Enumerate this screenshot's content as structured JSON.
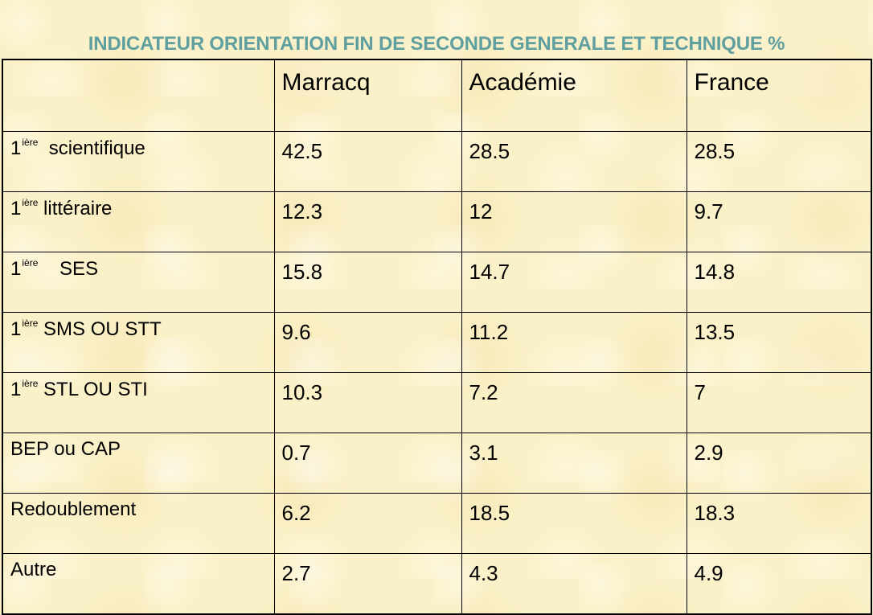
{
  "title": "INDICATEUR ORIENTATION FIN DE SECONDE GENERALE ET TECHNIQUE %",
  "table": {
    "columns": [
      "",
      "Marracq",
      "Académie",
      "France"
    ],
    "rows": [
      {
        "prefix": "1",
        "ordinal": "ière",
        "label": "  scientifique",
        "values": [
          "42.5",
          "28.5",
          "28.5"
        ]
      },
      {
        "prefix": "1",
        "ordinal": "ière",
        "label": " littéraire",
        "values": [
          "12.3",
          "12",
          "9.7"
        ]
      },
      {
        "prefix": "1",
        "ordinal": "ière",
        "label": "    SES",
        "values": [
          "15.8",
          "14.7",
          "14.8"
        ]
      },
      {
        "prefix": "1",
        "ordinal": "ière",
        "label": " SMS OU STT",
        "values": [
          "9.6",
          "11.2",
          "13.5"
        ]
      },
      {
        "prefix": "1",
        "ordinal": "ière",
        "label": " STL OU STI",
        "values": [
          "10.3",
          "7.2",
          "7"
        ]
      },
      {
        "prefix": "",
        "ordinal": "",
        "label": "BEP ou CAP",
        "values": [
          "0.7",
          "3.1",
          "2.9"
        ]
      },
      {
        "prefix": "",
        "ordinal": "",
        "label": "Redoublement",
        "values": [
          "6.2",
          "18.5",
          "18.3"
        ]
      },
      {
        "prefix": "",
        "ordinal": "",
        "label": "Autre",
        "values": [
          "2.7",
          "4.3",
          "4.9"
        ]
      }
    ]
  },
  "colors": {
    "title": "#5f9f9f",
    "background": "#fbf1c8",
    "border": "#000000"
  }
}
